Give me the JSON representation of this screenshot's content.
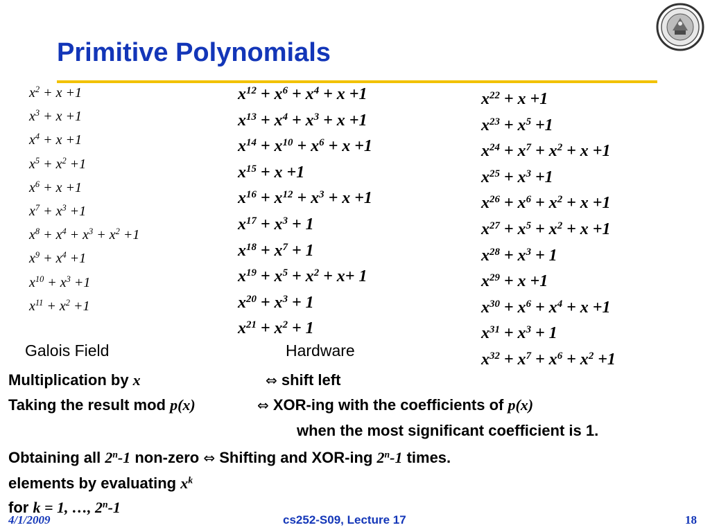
{
  "title": "Primitive Polynomials",
  "polynomials": {
    "col1": [
      [
        [
          "x",
          "2"
        ],
        [
          " + x +1",
          ""
        ]
      ],
      [
        [
          "x",
          "3"
        ],
        [
          " + x +1",
          ""
        ]
      ],
      [
        [
          "x",
          "4"
        ],
        [
          " + x +1",
          ""
        ]
      ],
      [
        [
          "x",
          "5"
        ],
        [
          " + x",
          "2"
        ],
        [
          " +1",
          ""
        ]
      ],
      [
        [
          "x",
          "6"
        ],
        [
          " + x +1",
          ""
        ]
      ],
      [
        [
          "x",
          "7"
        ],
        [
          " + x",
          "3"
        ],
        [
          " +1",
          ""
        ]
      ],
      [
        [
          "x",
          "8"
        ],
        [
          " + x",
          "4"
        ],
        [
          " + x",
          "3"
        ],
        [
          " + x",
          "2"
        ],
        [
          " +1",
          ""
        ]
      ],
      [
        [
          "x",
          "9"
        ],
        [
          " + x",
          "4"
        ],
        [
          " +1",
          ""
        ]
      ],
      [
        [
          "x",
          "10"
        ],
        [
          " + x",
          "3"
        ],
        [
          " +1",
          ""
        ]
      ],
      [
        [
          "x",
          "11"
        ],
        [
          " + x",
          "2"
        ],
        [
          " +1",
          ""
        ]
      ]
    ],
    "col2": [
      [
        [
          "x",
          "12"
        ],
        [
          " + x",
          "6"
        ],
        [
          " + x",
          "4"
        ],
        [
          " + x +1",
          ""
        ]
      ],
      [
        [
          "x",
          "13"
        ],
        [
          " + x",
          "4"
        ],
        [
          " + x",
          "3"
        ],
        [
          " + x +1",
          ""
        ]
      ],
      [
        [
          "x",
          "14"
        ],
        [
          " + x",
          "10"
        ],
        [
          " + x",
          "6"
        ],
        [
          " + x +1",
          ""
        ]
      ],
      [
        [
          "x",
          "15"
        ],
        [
          " + x +1",
          ""
        ]
      ],
      [
        [
          "x",
          "16"
        ],
        [
          " + x",
          "12"
        ],
        [
          " + x",
          "3"
        ],
        [
          " + x +1",
          ""
        ]
      ],
      [
        [
          "x",
          "17"
        ],
        [
          " + x",
          "3"
        ],
        [
          " + 1",
          ""
        ]
      ],
      [
        [
          "x",
          "18"
        ],
        [
          " + x",
          "7"
        ],
        [
          " + 1",
          ""
        ]
      ],
      [
        [
          "x",
          "19"
        ],
        [
          " + x",
          "5"
        ],
        [
          " + x",
          "2"
        ],
        [
          " + x+ 1",
          ""
        ]
      ],
      [
        [
          "x",
          "20"
        ],
        [
          " + x",
          "3"
        ],
        [
          " + 1",
          ""
        ]
      ],
      [
        [
          "x",
          "21"
        ],
        [
          " + x",
          "2"
        ],
        [
          " + 1",
          ""
        ]
      ]
    ],
    "col3": [
      [
        [
          "x",
          "22"
        ],
        [
          " + x +1",
          ""
        ]
      ],
      [
        [
          "x",
          "23"
        ],
        [
          " + x",
          "5"
        ],
        [
          " +1",
          ""
        ]
      ],
      [
        [
          "x",
          "24"
        ],
        [
          " + x",
          "7"
        ],
        [
          " + x",
          "2"
        ],
        [
          " + x +1",
          ""
        ]
      ],
      [
        [
          "x",
          "25"
        ],
        [
          " + x",
          "3"
        ],
        [
          " +1",
          ""
        ]
      ],
      [
        [
          "x",
          "26"
        ],
        [
          " + x",
          "6"
        ],
        [
          " + x",
          "2"
        ],
        [
          " + x +1",
          ""
        ]
      ],
      [
        [
          "x",
          "27"
        ],
        [
          " + x",
          "5"
        ],
        [
          " + x",
          "2"
        ],
        [
          " + x +1",
          ""
        ]
      ],
      [
        [
          "x",
          "28"
        ],
        [
          " + x",
          "3"
        ],
        [
          " + 1",
          ""
        ]
      ],
      [
        [
          "x",
          "29"
        ],
        [
          " + x +1",
          ""
        ]
      ],
      [
        [
          "x",
          "30"
        ],
        [
          " + x",
          "6"
        ],
        [
          " + x",
          "4"
        ],
        [
          " + x +1",
          ""
        ]
      ],
      [
        [
          "x",
          "31"
        ],
        [
          " + x",
          "3"
        ],
        [
          " + 1",
          ""
        ]
      ],
      [
        [
          "x",
          "32"
        ],
        [
          " + x",
          "7"
        ],
        [
          " + x",
          "6"
        ],
        [
          " + x",
          "2"
        ],
        [
          " +1",
          ""
        ]
      ]
    ]
  },
  "headers": {
    "galois_field": "Galois Field",
    "hardware": "Hardware"
  },
  "body": {
    "mult_label": "Multiplication by ",
    "mult_var": "x",
    "iff_symbol": "⇔",
    "shift_left": " shift left",
    "taking_label": "Taking the result mod ",
    "px": "p(x)",
    "xor_label": " XOR-ing with the coefficients of ",
    "px2": "p(x)",
    "when_label": "when the most significant coefficient is 1.",
    "obtaining_label": "Obtaining all ",
    "two": "2",
    "n": "n",
    "minus1": "-1",
    "nonzero": " non-zero ",
    "shifting_label": " Shifting and XOR-ing ",
    "times": " times.",
    "elements_label": "elements by evaluating ",
    "xk_base": "x",
    "xk_exp": "k",
    "for_label": "for ",
    "k_range": "k = 1, …, 2",
    "k_range_exp": "n",
    "k_range_end": "-1"
  },
  "footer": {
    "date": "4/1/2009",
    "course": "cs252-S09, Lecture 17",
    "page": "18"
  },
  "colors": {
    "title": "#1336b8",
    "rule": "#f2c200"
  }
}
